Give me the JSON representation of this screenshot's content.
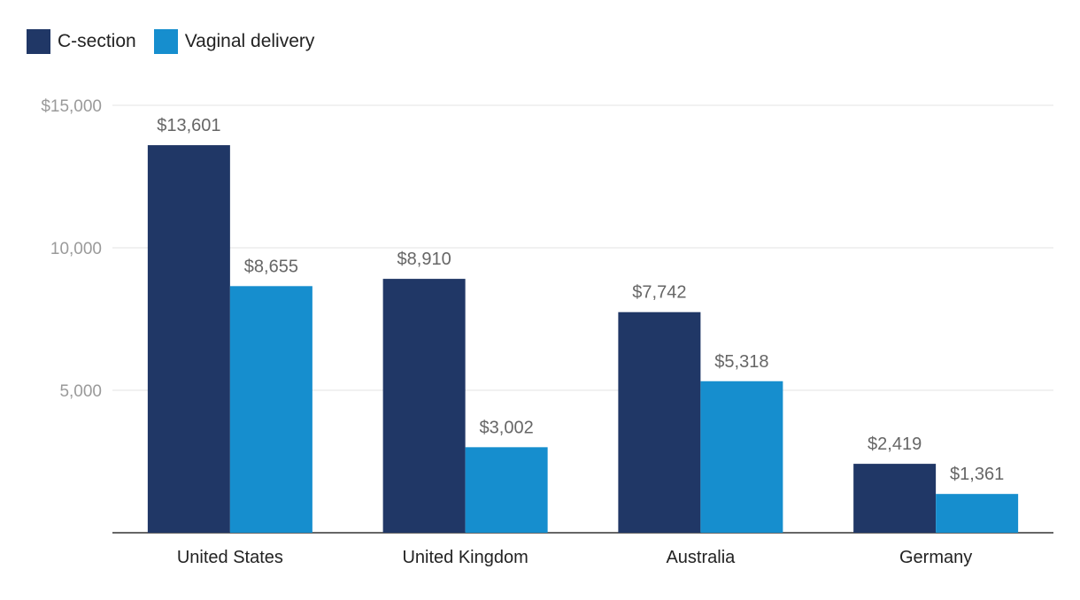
{
  "chart_data": {
    "type": "bar",
    "title": "",
    "xlabel": "",
    "ylabel": "",
    "categories": [
      "United States",
      "United Kingdom",
      "Australia",
      "Germany"
    ],
    "series": [
      {
        "name": "C-section",
        "color": "#203766",
        "values": [
          13601,
          8910,
          7742,
          2419
        ],
        "labels": [
          "$13,601",
          "$8,910",
          "$7,742",
          "$2,419"
        ]
      },
      {
        "name": "Vaginal delivery",
        "color": "#168ECE",
        "values": [
          8655,
          3002,
          5318,
          1361
        ],
        "labels": [
          "$8,655",
          "$3,002",
          "$5,318",
          "$1,361"
        ]
      }
    ],
    "ylim": [
      0,
      15000
    ],
    "yticks": [
      5000,
      10000,
      15000
    ],
    "ytick_labels": [
      "5,000",
      "10,000",
      "$15,000"
    ],
    "grid": true,
    "legend_position": "top-left"
  }
}
